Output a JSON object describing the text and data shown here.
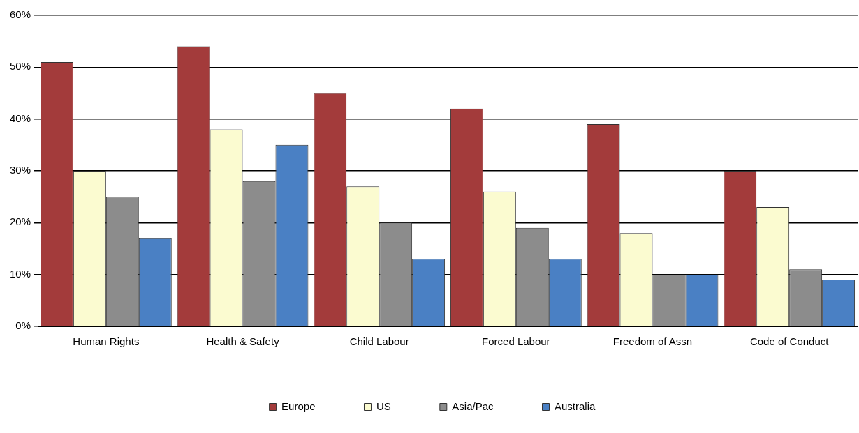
{
  "chart_data": {
    "type": "bar",
    "categories": [
      "Human Rights",
      "Health & Safety",
      "Child Labour",
      "Forced Labour",
      "Freedom of Assn",
      "Code of Conduct"
    ],
    "series": [
      {
        "name": "Europe",
        "color": "#a33b3b",
        "values": [
          51,
          54,
          45,
          42,
          39,
          30
        ]
      },
      {
        "name": "US",
        "color": "#fbfbd0",
        "values": [
          30,
          38,
          27,
          26,
          18,
          23
        ]
      },
      {
        "name": "Asia/Pac",
        "color": "#8c8c8c",
        "values": [
          25,
          28,
          20,
          19,
          10,
          11
        ]
      },
      {
        "name": "Australia",
        "color": "#4a80c4",
        "values": [
          17,
          35,
          13,
          13,
          10,
          9
        ]
      }
    ],
    "ylim": [
      0,
      60
    ],
    "yticks": [
      {
        "value": 0,
        "label": "0%"
      },
      {
        "value": 10,
        "label": "10%"
      },
      {
        "value": 20,
        "label": "20%"
      },
      {
        "value": 30,
        "label": "30%"
      },
      {
        "value": 40,
        "label": "40%"
      },
      {
        "value": 50,
        "label": "50%"
      },
      {
        "value": 60,
        "label": "60%"
      }
    ],
    "grid": "y",
    "legend": "bottom"
  }
}
